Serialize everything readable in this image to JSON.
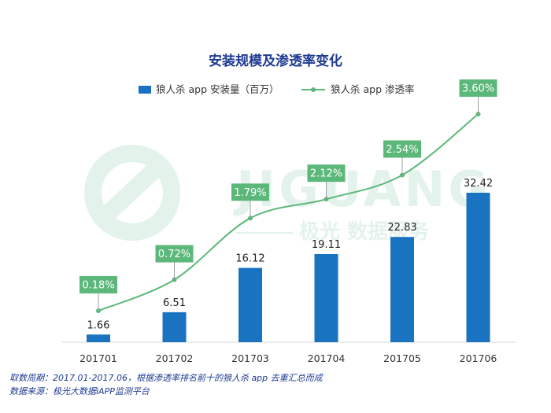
{
  "chart_data": {
    "type": "bar",
    "title": "安装规模及渗透率变化",
    "categories": [
      "201701",
      "201702",
      "201703",
      "201704",
      "201705",
      "201706"
    ],
    "series": [
      {
        "name": "狼人杀 app 安装量（百万）",
        "type": "bar",
        "values": [
          1.66,
          6.51,
          16.12,
          19.11,
          22.83,
          32.42
        ],
        "labels": [
          "1.66",
          "6.51",
          "16.12",
          "19.11",
          "22.83",
          "32.42"
        ],
        "color": "#1a73c0"
      },
      {
        "name": "狼人杀 app 渗透率",
        "type": "line",
        "values": [
          0.18,
          0.72,
          1.79,
          2.12,
          2.54,
          3.6
        ],
        "labels": [
          "0.18%",
          "0.72%",
          "1.79%",
          "2.12%",
          "2.54%",
          "3.60%"
        ],
        "color": "#5cb87a"
      }
    ],
    "grid": false,
    "legend": "top-center"
  },
  "watermark": {
    "brand": "JIGUANG",
    "subtitle": "极光 数据服务"
  },
  "notes": {
    "period": "取数周期：2017.01-2017.06，根据渗透率排名前十的狼人杀 app 去重汇总而成",
    "source": "数据来源：极光大数据iAPP监测平台"
  }
}
